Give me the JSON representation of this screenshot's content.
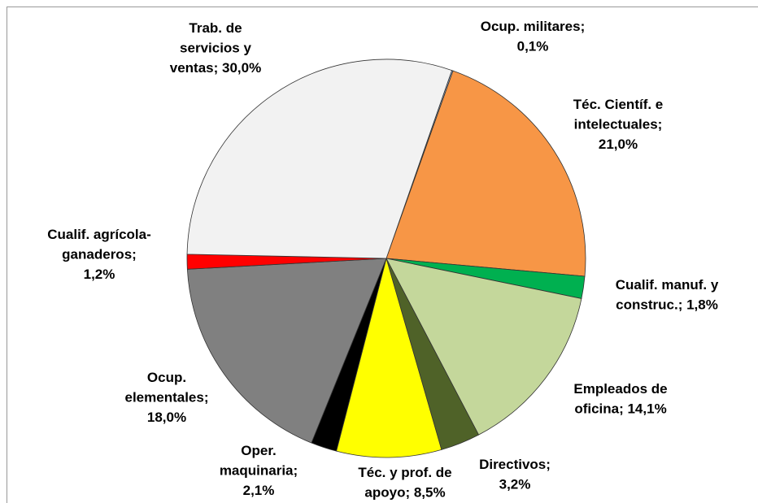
{
  "chart_data": {
    "type": "pie",
    "values": [
      0.1,
      21.0,
      1.8,
      14.1,
      3.2,
      8.5,
      2.1,
      18.0,
      1.2,
      30.0
    ],
    "value_labels": [
      [
        "Ocup. militares;",
        "0,1%"
      ],
      [
        "Téc. Científ. e",
        "intelectuales;",
        "21,0%"
      ],
      [
        "Cualif. manuf. y",
        "construc.; 1,8%"
      ],
      [
        "Empleados de",
        "oficina; 14,1%"
      ],
      [
        "Directivos;",
        "3,2%"
      ],
      [
        "Téc. y prof. de",
        "apoyo; 8,5%"
      ],
      [
        "Oper.",
        "maquinaria;",
        "2,1%"
      ],
      [
        "Ocup.",
        "elementales;",
        "18,0%"
      ],
      [
        "Cualif. agrícola-",
        "ganaderos;",
        "1,2%"
      ],
      [
        "Trab. de",
        "servicios y",
        "ventas; 30,0%"
      ]
    ],
    "colors": [
      "#9db9e0",
      "#f79646",
      "#00b050",
      "#c4d79b",
      "#4f6228",
      "#ffff00",
      "#000000",
      "#808080",
      "#ff0000",
      "#f2f2f2"
    ]
  }
}
